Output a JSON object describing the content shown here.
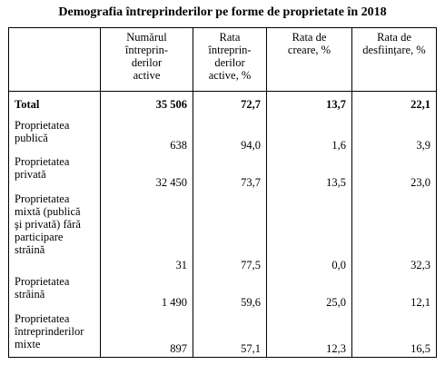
{
  "title": "Demografia întreprinderilor pe forme de proprietate în 2018",
  "table": {
    "header": [
      "Numărul\nîntreprin-\nderilor\nactive",
      "Rata\nîntreprin-\nderilor\nactive, %",
      "Rata de\ncreare, %",
      "Rata de\ndesființare, %"
    ],
    "rows": [
      [
        "Total",
        "35 506",
        "72,7",
        "13,7",
        "22,1"
      ],
      [
        "Proprietatea\npublică",
        "638",
        "94,0",
        "1,6",
        "3,9"
      ],
      [
        "Proprietatea\nprivată",
        "32 450",
        "73,7",
        "13,5",
        "23,0"
      ],
      [
        "Proprietatea\nmixtă (publică\nşi privată) fără\nparticipare\nstrăină",
        "31",
        "77,5",
        "0,0",
        "32,3"
      ],
      [
        "Proprietatea\nstrăină",
        "1 490",
        "59,6",
        "25,0",
        "12,1"
      ],
      [
        "Proprietatea\nîntreprinderilor\nmixte",
        "897",
        "57,1",
        "12,3",
        "16,5"
      ]
    ]
  }
}
